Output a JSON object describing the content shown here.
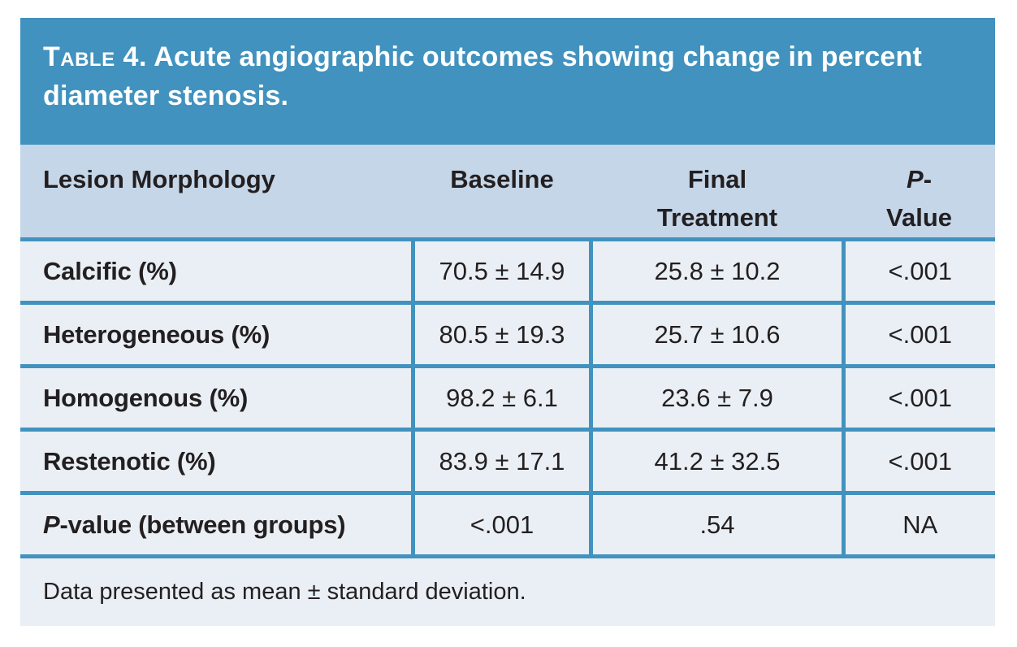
{
  "colors": {
    "accent_blue": "#4192BE",
    "header_bg": "#C5D6E8",
    "row_bg": "#E9EFF4",
    "text": "#231F20",
    "title_text": "#FFFFFF"
  },
  "table": {
    "title_prefix": "Table 4.",
    "title_rest": " Acute angiographic outcomes showing change in percent diameter stenosis.",
    "columns": [
      {
        "label": "Lesion Morphology"
      },
      {
        "label": "Baseline"
      },
      {
        "label": "Final Treatment",
        "line1": "Final",
        "line2": "Treatment"
      },
      {
        "label": "P-Value",
        "line1_italic": "P",
        "line1_rest": "-",
        "line2": "Value"
      }
    ],
    "rows": [
      {
        "label": "Calcific (%)",
        "baseline": "70.5 ± 14.9",
        "final": "25.8 ± 10.2",
        "p": "<.001"
      },
      {
        "label": "Heterogeneous (%)",
        "baseline": "80.5 ± 19.3",
        "final": "25.7 ± 10.6",
        "p": "<.001"
      },
      {
        "label": "Homogenous (%)",
        "baseline": "98.2 ± 6.1",
        "final": "23.6 ± 7.9",
        "p": "<.001"
      },
      {
        "label": "Restenotic (%)",
        "baseline": "83.9 ± 17.1",
        "final": "41.2 ± 32.5",
        "p": "<.001"
      },
      {
        "label_italic": "P",
        "label_rest": "-value (between groups)",
        "baseline": "<.001",
        "final": ".54",
        "p": "NA"
      }
    ],
    "footnote": "Data presented as mean ± standard deviation."
  }
}
